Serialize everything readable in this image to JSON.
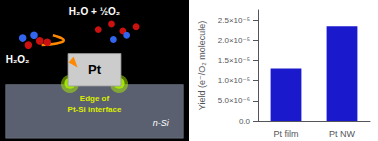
{
  "chart_data": {
    "type": "bar",
    "categories": [
      "Pt film",
      "Pt NW"
    ],
    "values": [
      1.3e-05,
      2.35e-05
    ],
    "color": "#1a1acc",
    "ylabel": "Yield (e⁻/O₂ molecule)",
    "ylim": [
      0,
      2.75e-05
    ],
    "yticks": [
      {
        "value": 0.0,
        "label": "0.0"
      },
      {
        "value": 5e-06,
        "label": "5.0×10⁻⁶"
      },
      {
        "value": 1e-05,
        "label": "1.0×10⁻⁵"
      },
      {
        "value": 1.5e-05,
        "label": "1.5×10⁻⁵"
      },
      {
        "value": 2e-05,
        "label": "2.0×10⁻⁵"
      },
      {
        "value": 2.5e-05,
        "label": "2.5×10⁻⁵"
      }
    ],
    "grid": false,
    "annotations": [
      "Pt",
      "H₂O₂",
      "H₂O + ½O₂",
      "Edge of",
      "Pt-Si interface",
      "n-Si"
    ]
  }
}
